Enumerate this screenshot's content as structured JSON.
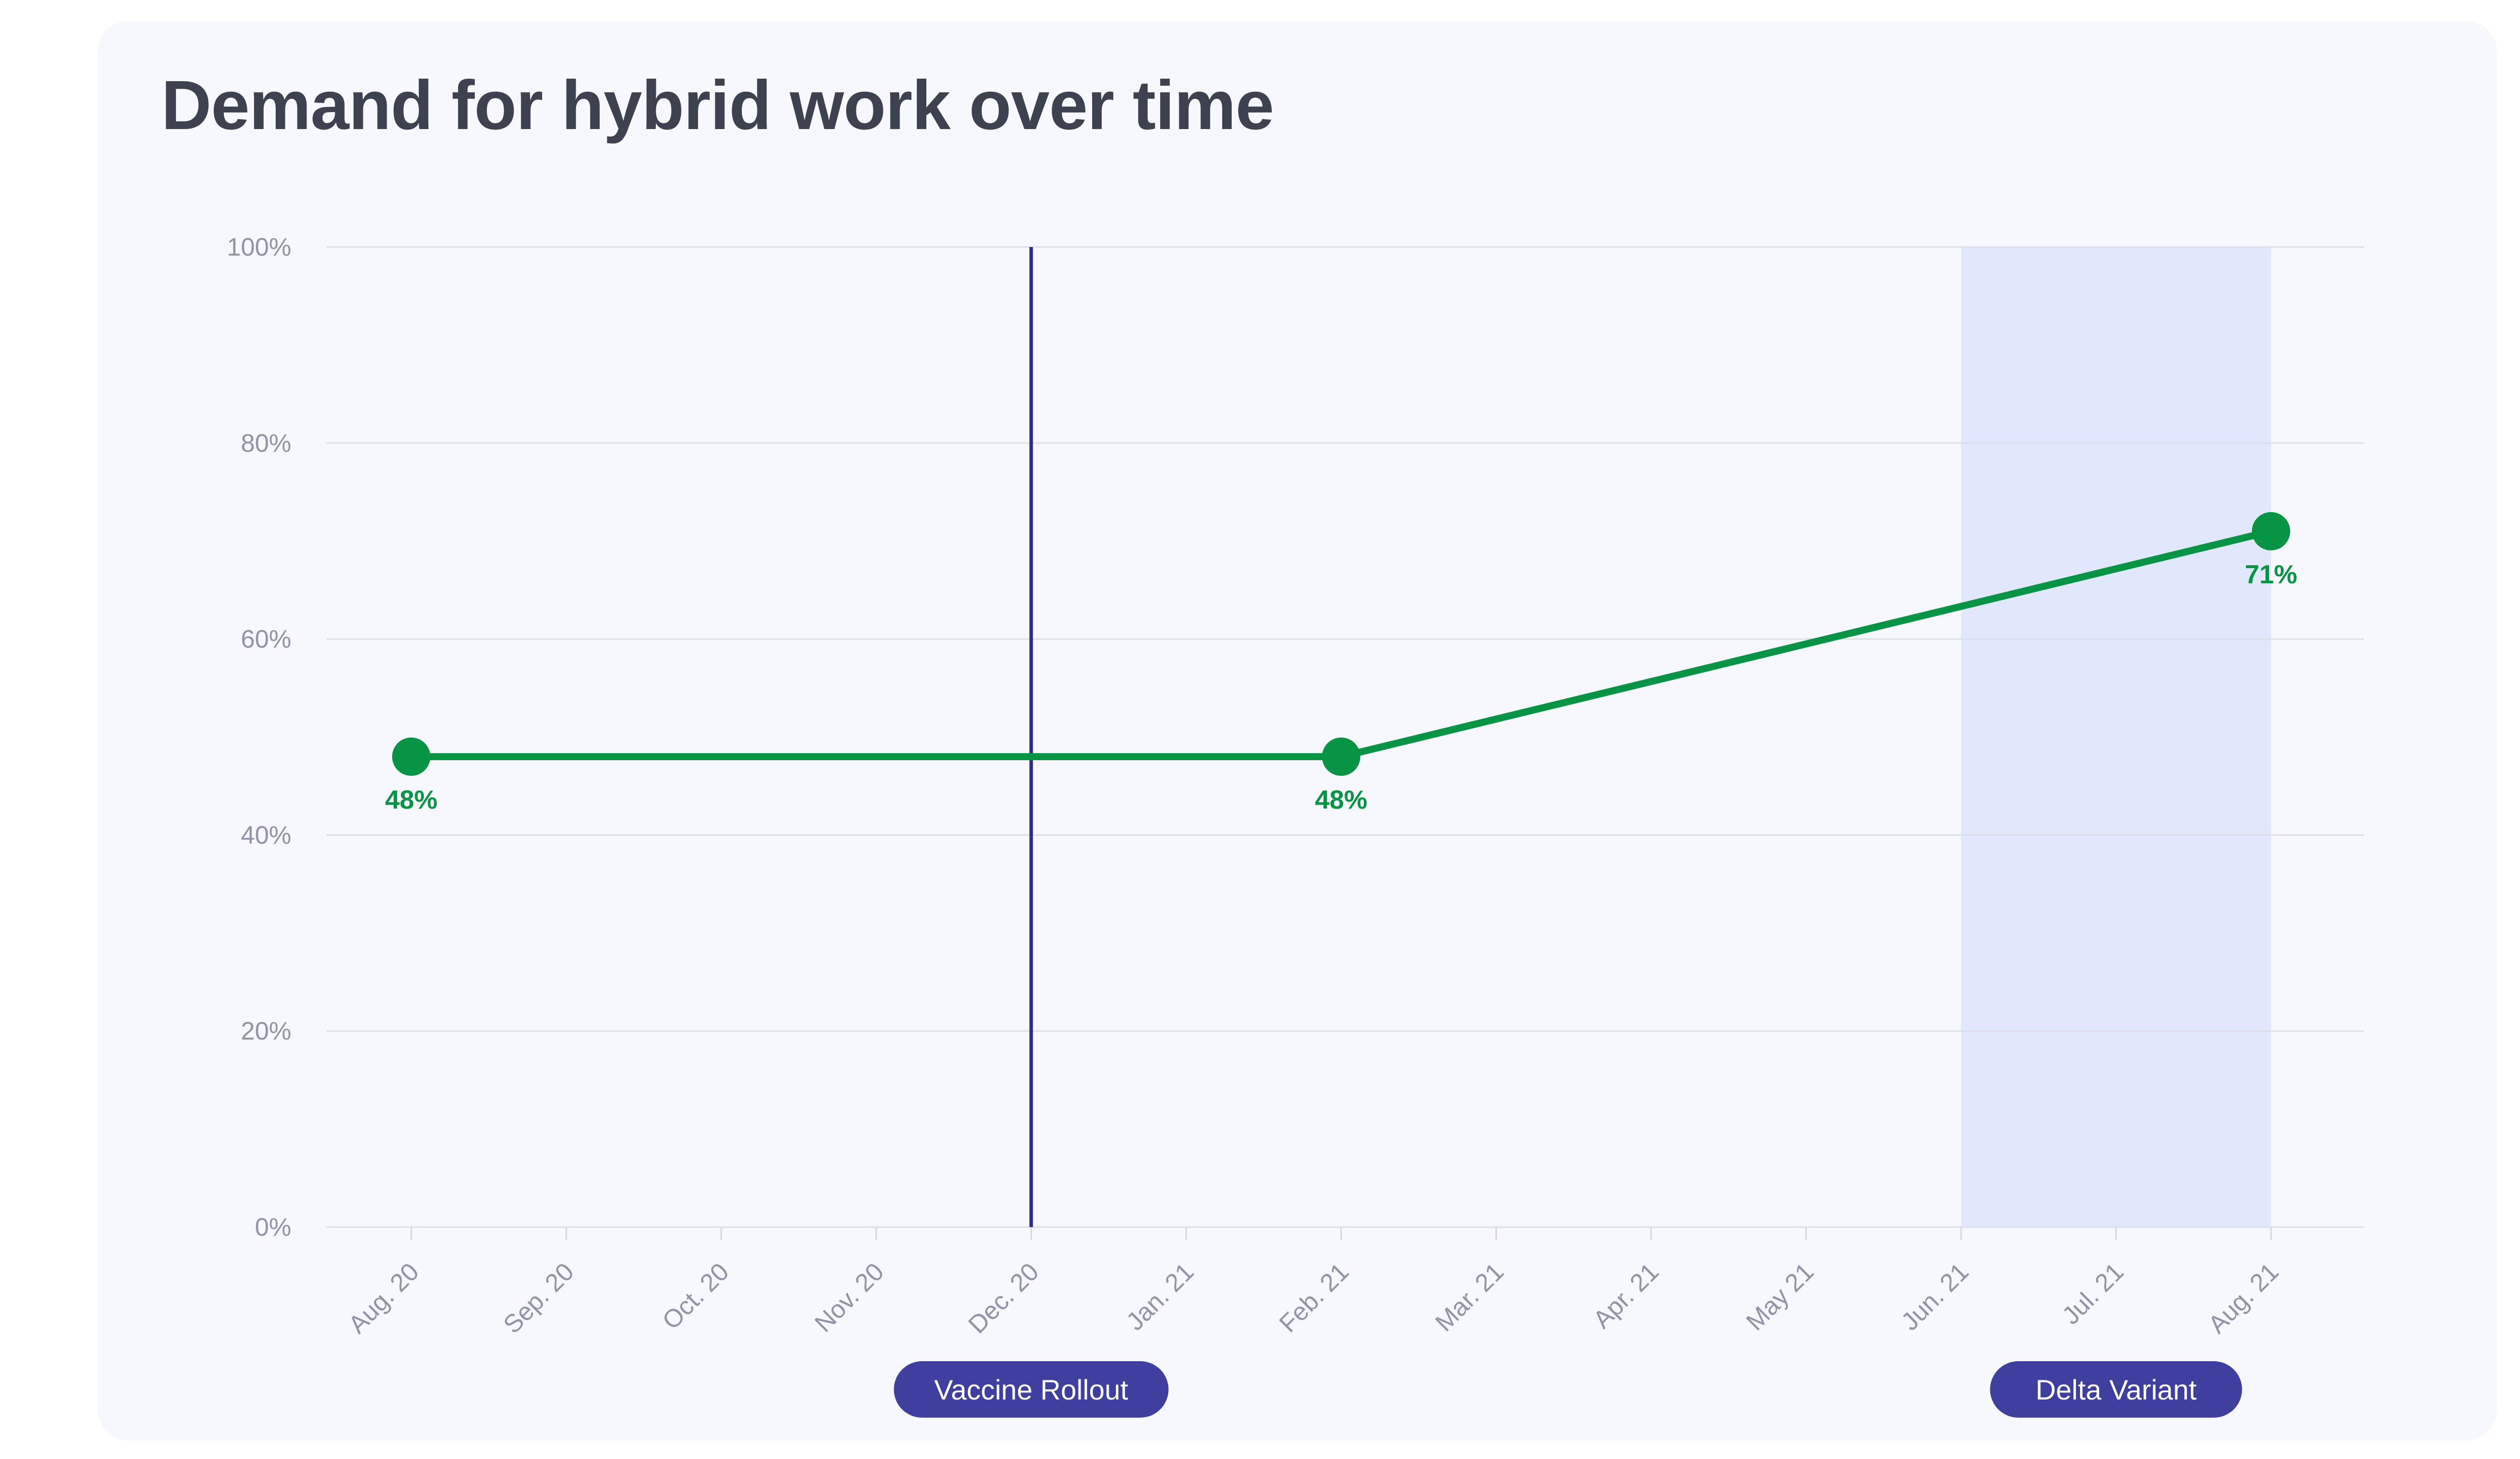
{
  "chart_data": {
    "type": "line",
    "title": "Demand for hybrid work over time",
    "x": [
      "Aug. 20",
      "Sep. 20",
      "Oct. 20",
      "Nov. 20",
      "Dec. 20",
      "Jan. 21",
      "Feb. 21",
      "Mar. 21",
      "Apr. 21",
      "May 21",
      "Jun. 21",
      "Jul. 21",
      "Aug. 21"
    ],
    "yticks": [
      "0%",
      "20%",
      "40%",
      "60%",
      "80%",
      "100%"
    ],
    "ylim": [
      0,
      100
    ],
    "grid": true,
    "series": [
      {
        "color": "#079445",
        "points": [
          {
            "x": "Aug. 20",
            "y": 48,
            "label": "48%"
          },
          {
            "x": "Feb. 21",
            "y": 48,
            "label": "48%"
          },
          {
            "x": "Aug. 21",
            "y": 71,
            "label": "71%"
          }
        ]
      }
    ],
    "annotations": [
      {
        "type": "line",
        "at": "Dec. 20",
        "label": "Vaccine Rollout",
        "color": "#2e2e7e"
      },
      {
        "type": "band",
        "from": "Jun. 21",
        "to": "Aug. 21",
        "label": "Delta Variant",
        "color": "#e1e7fc"
      }
    ],
    "pill_color": "#3f3f9f"
  }
}
